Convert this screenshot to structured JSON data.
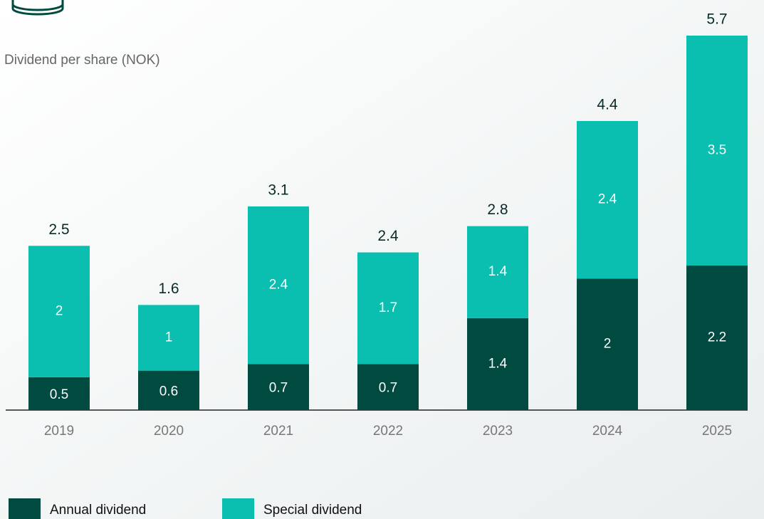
{
  "chart_data": {
    "type": "stacked_bar",
    "y_label": "Dividend per share (NOK)",
    "categories": [
      "2019",
      "2020",
      "2021",
      "2022",
      "2023",
      "2024",
      "2025"
    ],
    "series": [
      {
        "name": "Annual dividend",
        "color": "#004a40",
        "values": [
          0.5,
          0.6,
          0.7,
          0.7,
          1.4,
          2.0,
          2.2
        ]
      },
      {
        "name": "Special dividend",
        "color": "#0abfb0",
        "values": [
          2.0,
          1.0,
          2.4,
          1.7,
          1.4,
          2.4,
          3.5
        ]
      }
    ],
    "totals": [
      2.5,
      1.6,
      3.1,
      2.4,
      2.8,
      4.4,
      5.7
    ]
  }
}
